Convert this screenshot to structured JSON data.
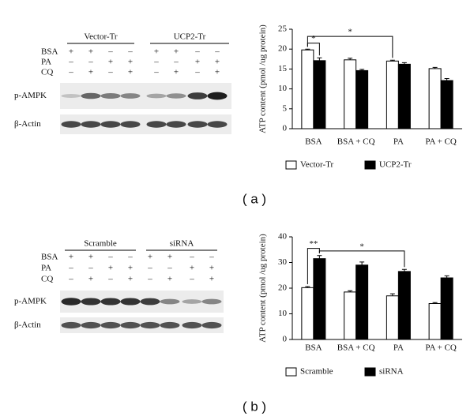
{
  "chart_data": [
    {
      "type": "bar",
      "ylabel": "ATP content (pmol /ug protein)",
      "categories": [
        "BSA",
        "BSA + CQ",
        "PA",
        "PA + CQ"
      ],
      "series": [
        {
          "name": "Vector-Tr",
          "color": "#ffffff",
          "values": [
            19.8,
            17.3,
            17.0,
            15.1
          ],
          "errors": [
            0.2,
            0.4,
            0.2,
            0.3
          ]
        },
        {
          "name": "UCP2-Tr",
          "color": "#000000",
          "values": [
            17.1,
            14.6,
            16.2,
            12.1
          ],
          "errors": [
            0.7,
            0.3,
            0.4,
            0.5
          ]
        }
      ],
      "ylim": [
        0,
        25
      ],
      "yticks": [
        0,
        5,
        10,
        15,
        20,
        25
      ],
      "annotations": [
        "*",
        "*"
      ]
    },
    {
      "type": "bar",
      "ylabel": "ATP content (pmol /ug protein)",
      "categories": [
        "BSA",
        "BSA + CQ",
        "PA",
        "PA + CQ"
      ],
      "series": [
        {
          "name": "Scramble",
          "color": "#ffffff",
          "values": [
            20.2,
            18.5,
            17.0,
            14.0
          ],
          "errors": [
            0.4,
            0.5,
            0.8,
            0.4
          ]
        },
        {
          "name": "siRNA",
          "color": "#000000",
          "values": [
            31.5,
            29.0,
            26.5,
            24.0
          ],
          "errors": [
            1.2,
            1.2,
            0.8,
            0.8
          ]
        }
      ],
      "ylim": [
        0,
        40
      ],
      "yticks": [
        0,
        10,
        20,
        30,
        40
      ],
      "annotations": [
        "**",
        "*"
      ]
    }
  ],
  "blots": [
    {
      "groups": [
        "Vector-Tr",
        "UCP2-Tr"
      ],
      "conditions": [
        {
          "name": "BSA",
          "signs": [
            "+",
            "+",
            "–",
            "–",
            "+",
            "+",
            "–",
            "–"
          ]
        },
        {
          "name": "PA",
          "signs": [
            "–",
            "–",
            "+",
            "+",
            "–",
            "–",
            "+",
            "+"
          ]
        },
        {
          "name": "CQ",
          "signs": [
            "–",
            "+",
            "–",
            "+",
            "–",
            "+",
            "–",
            "+"
          ]
        }
      ],
      "bands": [
        "p-AMPK",
        "β-Actin"
      ]
    },
    {
      "groups": [
        "Scramble",
        "siRNA"
      ],
      "conditions": [
        {
          "name": "BSA",
          "signs": [
            "+",
            "+",
            "–",
            "–",
            "+",
            "+",
            "–",
            "–"
          ]
        },
        {
          "name": "PA",
          "signs": [
            "–",
            "–",
            "+",
            "+",
            "–",
            "–",
            "+",
            "+"
          ]
        },
        {
          "name": "CQ",
          "signs": [
            "–",
            "+",
            "–",
            "+",
            "–",
            "+",
            "–",
            "+"
          ]
        }
      ],
      "bands": [
        "p-AMPK",
        "β-Actin"
      ]
    }
  ],
  "panel_labels": [
    "( a )",
    "( b )"
  ]
}
